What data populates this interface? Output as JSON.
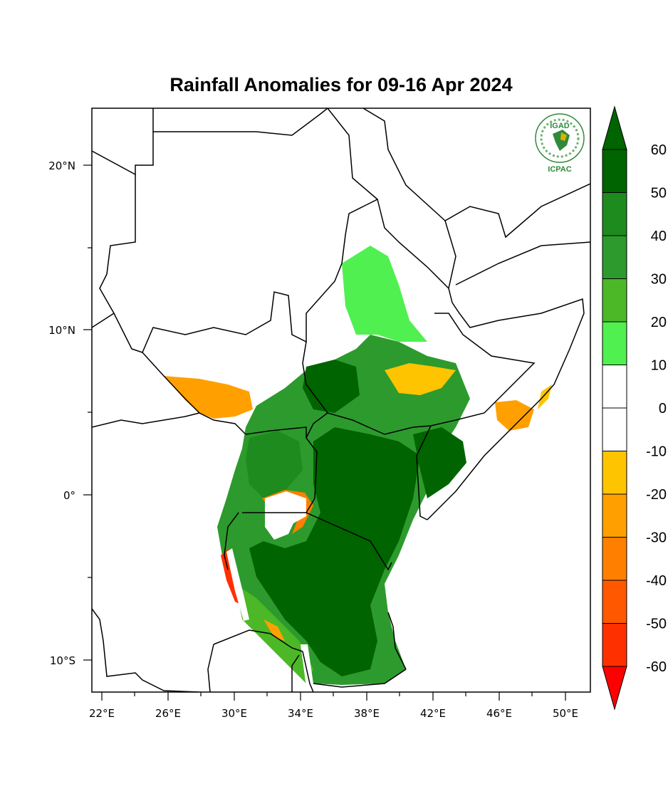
{
  "title": "Rainfall Anomalies for 09-16 Apr 2024",
  "logo": {
    "top_text": "IGAD",
    "bottom_text": "ICPAC"
  },
  "map": {
    "lon_ticks": [
      "22°E",
      "26°E",
      "30°E",
      "34°E",
      "38°E",
      "42°E",
      "46°E",
      "50°E"
    ],
    "lat_ticks": [
      "20°N",
      "10°N",
      "0°",
      "10°S"
    ],
    "lon_range": [
      21.5,
      51.5
    ],
    "lat_range": [
      -12,
      23.5
    ]
  },
  "colorbar": {
    "labels": [
      "60",
      "50",
      "40",
      "30",
      "20",
      "10",
      "0",
      "-10",
      "-20",
      "-30",
      "-40",
      "-50",
      "-60"
    ],
    "colors": [
      "#006400",
      "#1e8b1e",
      "#2d9a2d",
      "#4cb828",
      "#50f050",
      "#ffffff",
      "#ffffff",
      "#ffc400",
      "#ffa000",
      "#ff8000",
      "#ff5800",
      "#ff3000",
      "#ff0000"
    ],
    "top_arrow_color": "#006400",
    "bottom_arrow_color": "#ff0000"
  }
}
